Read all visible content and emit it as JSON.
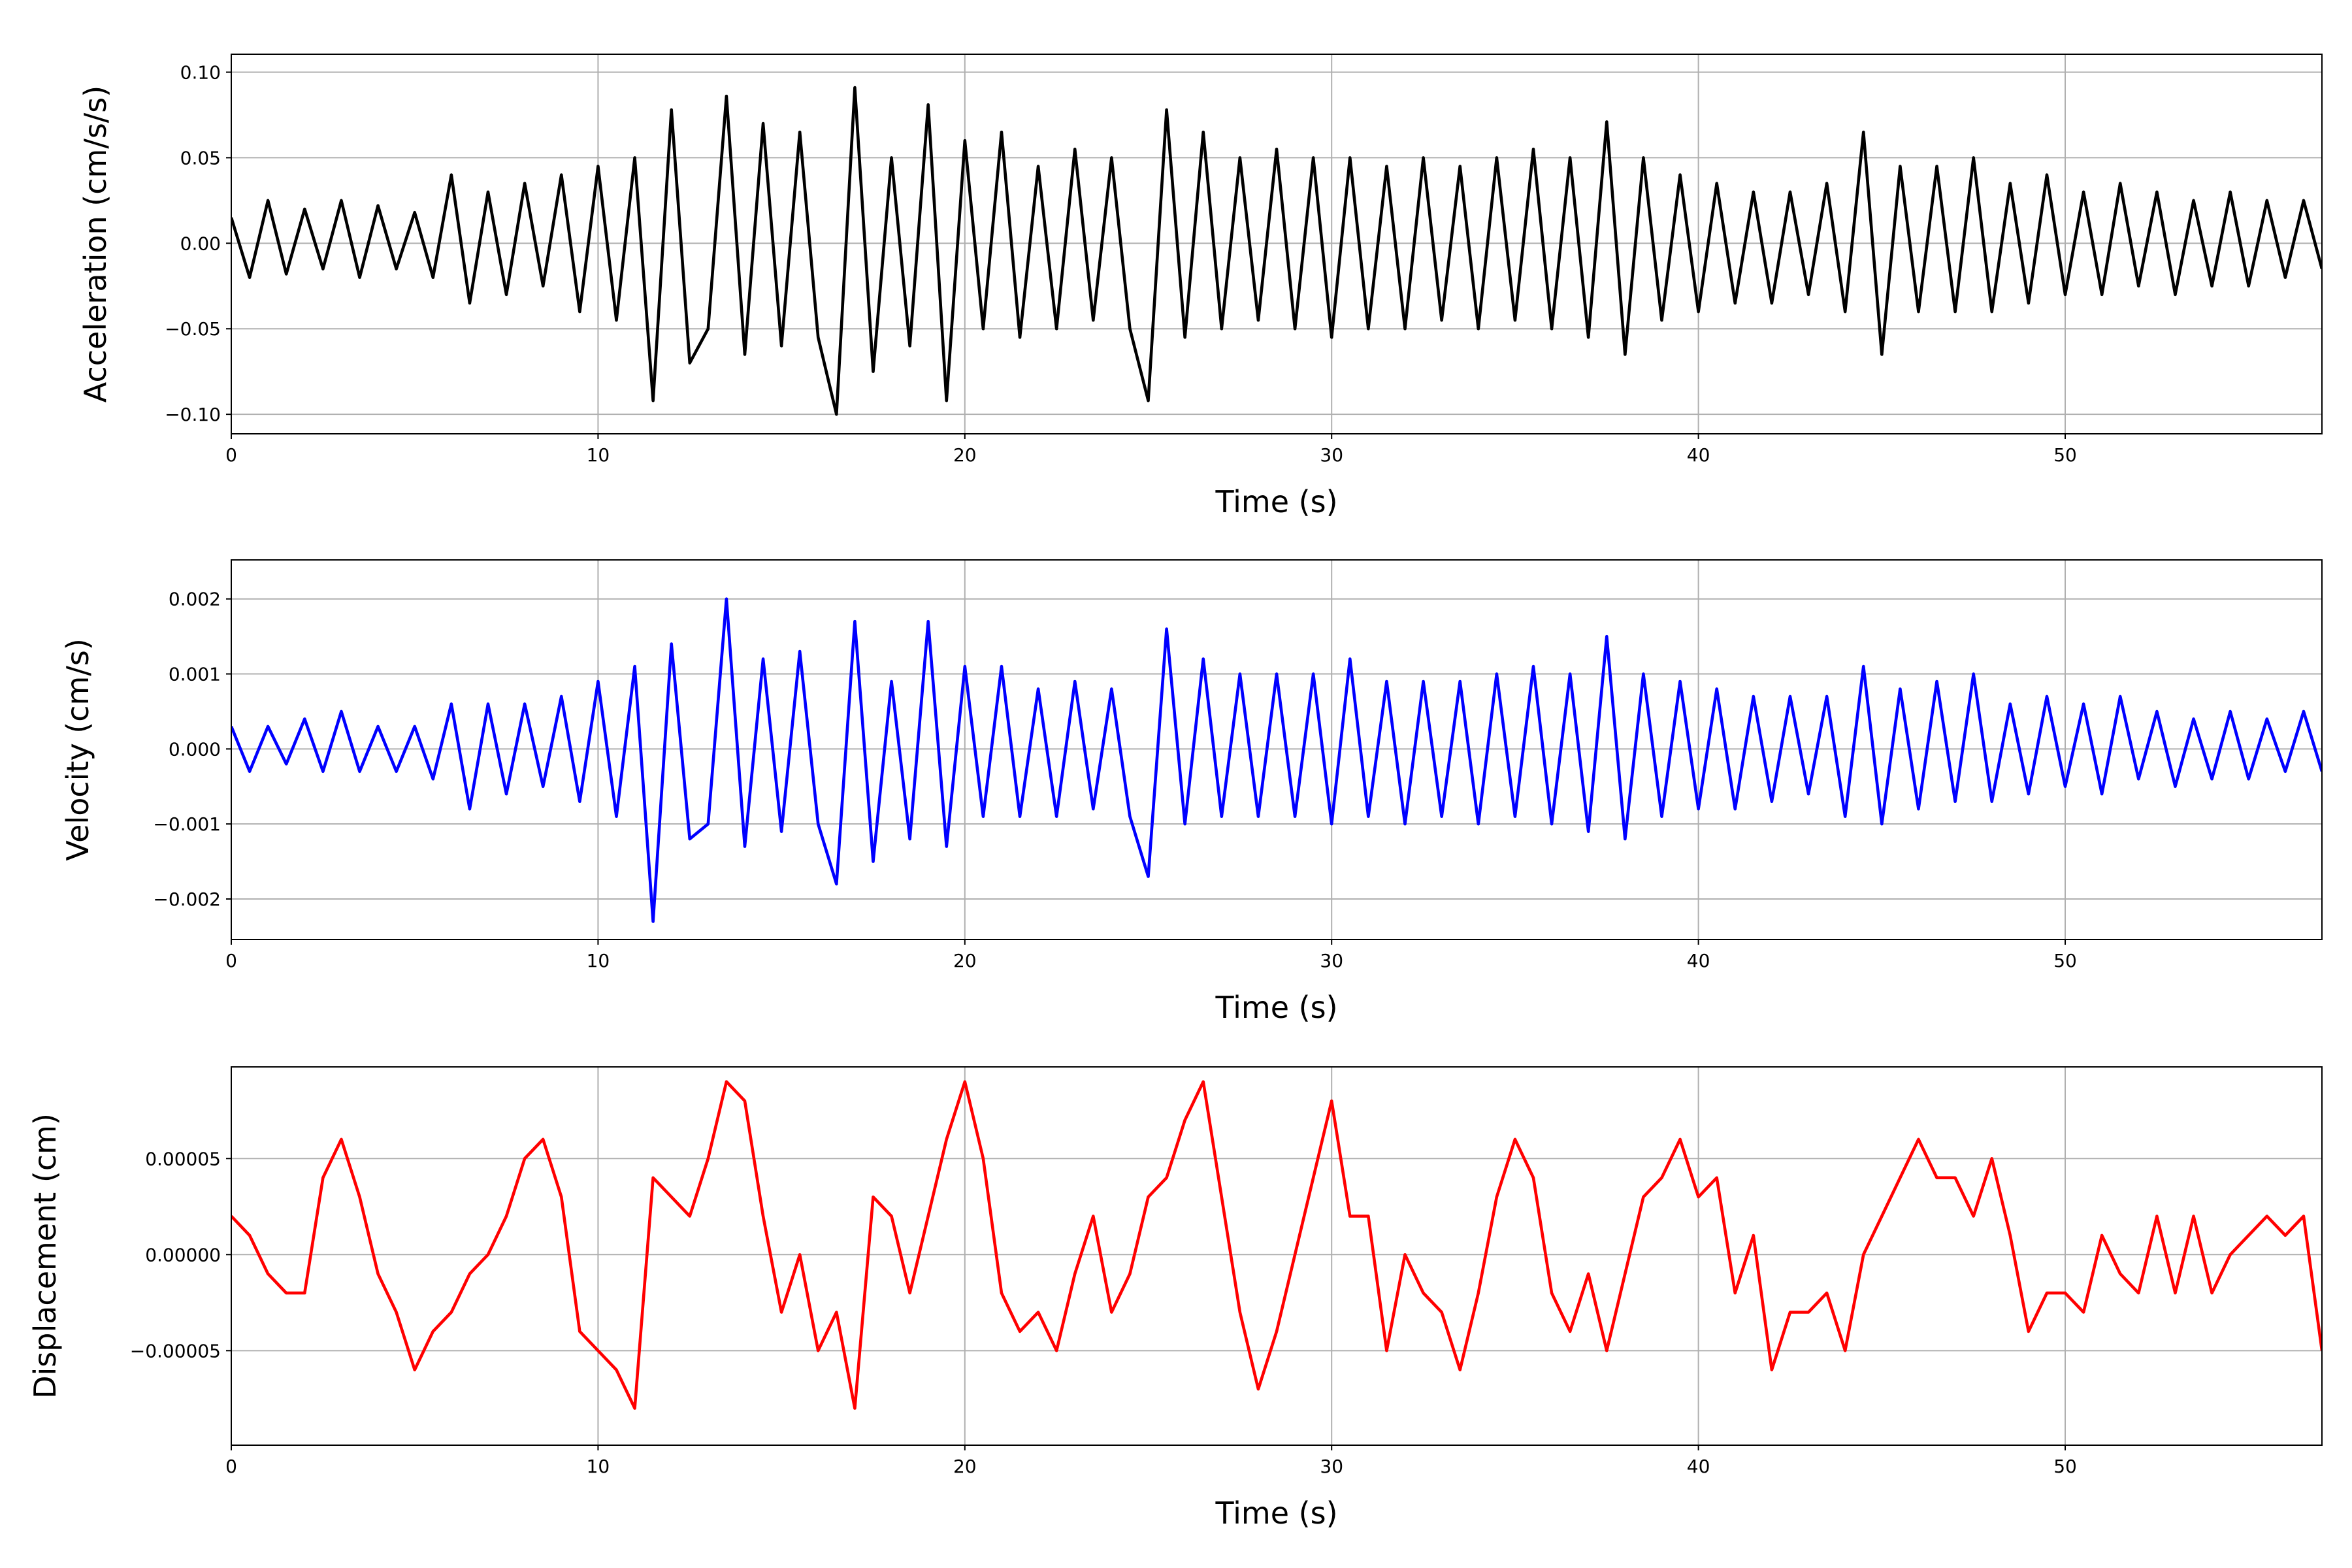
{
  "chart_data": [
    {
      "type": "line",
      "xlabel": "Time (s)",
      "ylabel": "Acceleration (cm/s/s)",
      "x": [
        0,
        0.5,
        1,
        1.5,
        2,
        2.5,
        3,
        3.5,
        4,
        4.5,
        5,
        5.5,
        6,
        6.5,
        7,
        7.5,
        8,
        8.5,
        9,
        9.5,
        10,
        10.5,
        11,
        11.5,
        12,
        12.5,
        13,
        13.5,
        14,
        14.5,
        15,
        15.5,
        16,
        16.5,
        17,
        17.5,
        18,
        18.5,
        19,
        19.5,
        20,
        20.5,
        21,
        21.5,
        22,
        22.5,
        23,
        23.5,
        24,
        24.5,
        25,
        25.5,
        26,
        26.5,
        27,
        27.5,
        28,
        28.5,
        29,
        29.5,
        30,
        30.5,
        31,
        31.5,
        32,
        32.5,
        33,
        33.5,
        34,
        34.5,
        35,
        35.5,
        36,
        36.5,
        37,
        37.5,
        38,
        38.5,
        39,
        39.5,
        40,
        40.5,
        41,
        41.5,
        42,
        42.5,
        43,
        43.5,
        44,
        44.5,
        45,
        45.5,
        46,
        46.5,
        47,
        47.5,
        48,
        48.5,
        49,
        49.5,
        50,
        50.5,
        51,
        51.5,
        52,
        52.5,
        53,
        53.5,
        54,
        54.5,
        55,
        55.5,
        56,
        56.5,
        57
      ],
      "series": [
        {
          "color": "#000000",
          "values": [
            0.015,
            -0.02,
            0.025,
            -0.018,
            0.02,
            -0.015,
            0.025,
            -0.02,
            0.022,
            -0.015,
            0.018,
            -0.02,
            0.04,
            -0.035,
            0.03,
            -0.03,
            0.035,
            -0.025,
            0.04,
            -0.04,
            0.045,
            -0.045,
            0.05,
            -0.092,
            0.078,
            -0.07,
            -0.05,
            0.086,
            -0.065,
            0.07,
            -0.06,
            0.065,
            -0.055,
            -0.1,
            0.091,
            -0.075,
            0.05,
            -0.06,
            0.081,
            -0.092,
            0.06,
            -0.05,
            0.065,
            -0.055,
            0.045,
            -0.05,
            0.055,
            -0.045,
            0.05,
            -0.05,
            -0.092,
            0.078,
            -0.055,
            0.065,
            -0.05,
            0.05,
            -0.045,
            0.055,
            -0.05,
            0.05,
            -0.055,
            0.05,
            -0.05,
            0.045,
            -0.05,
            0.05,
            -0.045,
            0.045,
            -0.05,
            0.05,
            -0.045,
            0.055,
            -0.05,
            0.05,
            -0.055,
            0.071,
            -0.065,
            0.05,
            -0.045,
            0.04,
            -0.04,
            0.035,
            -0.035,
            0.03,
            -0.035,
            0.03,
            -0.03,
            0.035,
            -0.04,
            0.065,
            -0.065,
            0.045,
            -0.04,
            0.045,
            -0.04,
            0.05,
            -0.04,
            0.035,
            -0.035,
            0.04,
            -0.03,
            0.03,
            -0.03,
            0.035,
            -0.025,
            0.03,
            -0.03,
            0.025,
            -0.025,
            0.03,
            -0.025,
            0.025,
            -0.02,
            0.025,
            -0.015
          ]
        }
      ],
      "xlim": [
        0,
        57
      ],
      "xticks": [
        0,
        10,
        20,
        30,
        40,
        50
      ],
      "ylim": [
        -0.1114,
        0.1105
      ],
      "yticks": [
        {
          "value": -0.1,
          "label": "−0.10"
        },
        {
          "value": -0.05,
          "label": "−0.05"
        },
        {
          "value": 0,
          "label": "0.00"
        },
        {
          "value": 0.05,
          "label": "0.05"
        },
        {
          "value": 0.1,
          "label": "0.10"
        }
      ],
      "grid": true
    },
    {
      "type": "line",
      "xlabel": "Time (s)",
      "ylabel": "Velocity (cm/s)",
      "x": [
        0,
        0.5,
        1,
        1.5,
        2,
        2.5,
        3,
        3.5,
        4,
        4.5,
        5,
        5.5,
        6,
        6.5,
        7,
        7.5,
        8,
        8.5,
        9,
        9.5,
        10,
        10.5,
        11,
        11.5,
        12,
        12.5,
        13,
        13.5,
        14,
        14.5,
        15,
        15.5,
        16,
        16.5,
        17,
        17.5,
        18,
        18.5,
        19,
        19.5,
        20,
        20.5,
        21,
        21.5,
        22,
        22.5,
        23,
        23.5,
        24,
        24.5,
        25,
        25.5,
        26,
        26.5,
        27,
        27.5,
        28,
        28.5,
        29,
        29.5,
        30,
        30.5,
        31,
        31.5,
        32,
        32.5,
        33,
        33.5,
        34,
        34.5,
        35,
        35.5,
        36,
        36.5,
        37,
        37.5,
        38,
        38.5,
        39,
        39.5,
        40,
        40.5,
        41,
        41.5,
        42,
        42.5,
        43,
        43.5,
        44,
        44.5,
        45,
        45.5,
        46,
        46.5,
        47,
        47.5,
        48,
        48.5,
        49,
        49.5,
        50,
        50.5,
        51,
        51.5,
        52,
        52.5,
        53,
        53.5,
        54,
        54.5,
        55,
        55.5,
        56,
        56.5,
        57
      ],
      "series": [
        {
          "color": "#0000ff",
          "values": [
            0.0003,
            -0.0003,
            0.0003,
            -0.0002,
            0.0004,
            -0.0003,
            0.0005,
            -0.0003,
            0.0003,
            -0.0003,
            0.0003,
            -0.0004,
            0.0006,
            -0.0008,
            0.0006,
            -0.0006,
            0.0006,
            -0.0005,
            0.0007,
            -0.0007,
            0.0009,
            -0.0009,
            0.0011,
            -0.0023,
            0.0014,
            -0.0012,
            -0.001,
            0.002,
            -0.0013,
            0.0012,
            -0.0011,
            0.0013,
            -0.001,
            -0.0018,
            0.0017,
            -0.0015,
            0.0009,
            -0.0012,
            0.0017,
            -0.0013,
            0.0011,
            -0.0009,
            0.0011,
            -0.0009,
            0.0008,
            -0.0009,
            0.0009,
            -0.0008,
            0.0008,
            -0.0009,
            -0.0017,
            0.0016,
            -0.001,
            0.0012,
            -0.0009,
            0.001,
            -0.0009,
            0.001,
            -0.0009,
            0.001,
            -0.001,
            0.0012,
            -0.0009,
            0.0009,
            -0.001,
            0.0009,
            -0.0009,
            0.0009,
            -0.001,
            0.001,
            -0.0009,
            0.0011,
            -0.001,
            0.001,
            -0.0011,
            0.0015,
            -0.0012,
            0.001,
            -0.0009,
            0.0009,
            -0.0008,
            0.0008,
            -0.0008,
            0.0007,
            -0.0007,
            0.0007,
            -0.0006,
            0.0007,
            -0.0009,
            0.0011,
            -0.001,
            0.0008,
            -0.0008,
            0.0009,
            -0.0007,
            0.001,
            -0.0007,
            0.0006,
            -0.0006,
            0.0007,
            -0.0005,
            0.0006,
            -0.0006,
            0.0007,
            -0.0004,
            0.0005,
            -0.0005,
            0.0004,
            -0.0004,
            0.0005,
            -0.0004,
            0.0004,
            -0.0003,
            0.0005,
            -0.0003
          ]
        }
      ],
      "xlim": [
        0,
        57
      ],
      "xticks": [
        0,
        10,
        20,
        30,
        40,
        50
      ],
      "ylim": [
        -0.00254,
        0.00252
      ],
      "yticks": [
        {
          "value": -0.002,
          "label": "−0.002"
        },
        {
          "value": -0.001,
          "label": "−0.001"
        },
        {
          "value": 0,
          "label": "0.000"
        },
        {
          "value": 0.001,
          "label": "0.001"
        },
        {
          "value": 0.002,
          "label": "0.002"
        }
      ],
      "grid": true
    },
    {
      "type": "line",
      "xlabel": "Time (s)",
      "ylabel": "Displacement (cm)",
      "x": [
        0,
        0.5,
        1,
        1.5,
        2,
        2.5,
        3,
        3.5,
        4,
        4.5,
        5,
        5.5,
        6,
        6.5,
        7,
        7.5,
        8,
        8.5,
        9,
        9.5,
        10,
        10.5,
        11,
        11.5,
        12,
        12.5,
        13,
        13.5,
        14,
        14.5,
        15,
        15.5,
        16,
        16.5,
        17,
        17.5,
        18,
        18.5,
        19,
        19.5,
        20,
        20.5,
        21,
        21.5,
        22,
        22.5,
        23,
        23.5,
        24,
        24.5,
        25,
        25.5,
        26,
        26.5,
        27,
        27.5,
        28,
        28.5,
        29,
        29.5,
        30,
        30.5,
        31,
        31.5,
        32,
        32.5,
        33,
        33.5,
        34,
        34.5,
        35,
        35.5,
        36,
        36.5,
        37,
        37.5,
        38,
        38.5,
        39,
        39.5,
        40,
        40.5,
        41,
        41.5,
        42,
        42.5,
        43,
        43.5,
        44,
        44.5,
        45,
        45.5,
        46,
        46.5,
        47,
        47.5,
        48,
        48.5,
        49,
        49.5,
        50,
        50.5,
        51,
        51.5,
        52,
        52.5,
        53,
        53.5,
        54,
        54.5,
        55,
        55.5,
        56,
        56.5,
        57
      ],
      "series": [
        {
          "color": "#ff0000",
          "values": [
            2e-05,
            1e-05,
            -1e-05,
            -2e-05,
            -2e-05,
            4e-05,
            6e-05,
            3e-05,
            -1e-05,
            -3e-05,
            -6e-05,
            -4e-05,
            -3e-05,
            -1e-05,
            0.0,
            2e-05,
            5e-05,
            6e-05,
            3e-05,
            -4e-05,
            -5e-05,
            -6e-05,
            -8e-05,
            4e-05,
            3e-05,
            2e-05,
            5e-05,
            9e-05,
            8e-05,
            2e-05,
            -3e-05,
            0.0,
            -5e-05,
            -3e-05,
            -8e-05,
            3e-05,
            2e-05,
            -2e-05,
            2e-05,
            6e-05,
            9e-05,
            5e-05,
            -2e-05,
            -4e-05,
            -3e-05,
            -5e-05,
            -1e-05,
            2e-05,
            -3e-05,
            -1e-05,
            3e-05,
            4e-05,
            7e-05,
            9e-05,
            3e-05,
            -3e-05,
            -7e-05,
            -4e-05,
            0.0,
            4e-05,
            8e-05,
            2e-05,
            2e-05,
            -5e-05,
            0.0,
            -2e-05,
            -3e-05,
            -6e-05,
            -2e-05,
            3e-05,
            6e-05,
            4e-05,
            -2e-05,
            -4e-05,
            -1e-05,
            -5e-05,
            -1e-05,
            3e-05,
            4e-05,
            6e-05,
            3e-05,
            4e-05,
            -2e-05,
            1e-05,
            -6e-05,
            -3e-05,
            -3e-05,
            -2e-05,
            -5e-05,
            0.0,
            2e-05,
            4e-05,
            6e-05,
            4e-05,
            4e-05,
            2e-05,
            5e-05,
            1e-05,
            -4e-05,
            -2e-05,
            -2e-05,
            -3e-05,
            1e-05,
            -1e-05,
            -2e-05,
            2e-05,
            -2e-05,
            2e-05,
            -2e-05,
            0.0,
            1e-05,
            2e-05,
            1e-05,
            2e-05,
            -5e-05
          ]
        }
      ],
      "xlim": [
        0,
        57
      ],
      "xticks": [
        0,
        10,
        20,
        30,
        40,
        50
      ],
      "ylim": [
        -9.92e-05,
        9.77e-05
      ],
      "yticks": [
        {
          "value": -5e-05,
          "label": "−0.00005"
        },
        {
          "value": 0,
          "label": "0.00000"
        },
        {
          "value": 5e-05,
          "label": "0.00005"
        }
      ],
      "grid": true
    }
  ]
}
